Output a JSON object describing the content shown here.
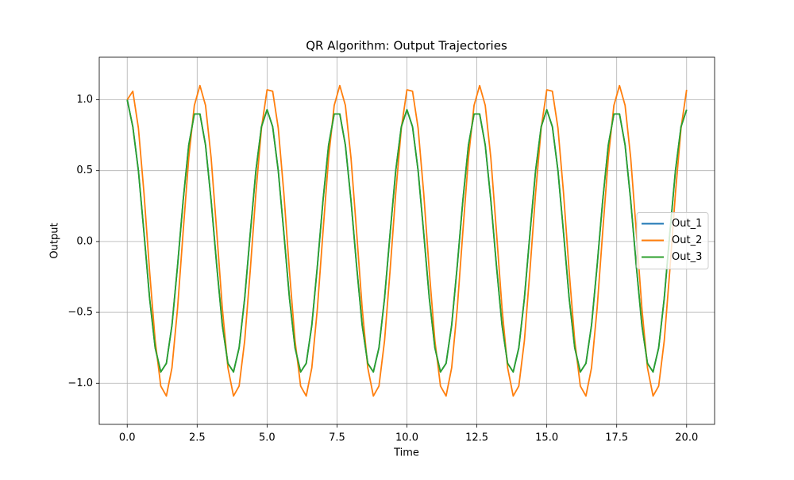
{
  "chart_data": {
    "type": "line",
    "title": "QR Algorithm: Output Trajectories",
    "xlabel": "Time",
    "ylabel": "Output",
    "x": [
      0,
      0.2,
      0.4,
      0.6,
      0.8,
      1,
      1.2,
      1.4,
      1.6,
      1.8,
      2,
      2.2,
      2.4,
      2.6,
      2.8,
      3,
      3.2,
      3.4,
      3.6,
      3.8,
      4,
      4.2,
      4.4,
      4.6,
      4.8,
      5,
      5.2,
      5.4,
      5.6,
      5.8,
      6,
      6.2,
      6.4,
      6.6,
      6.8,
      7,
      7.2,
      7.4,
      7.6,
      7.8,
      8,
      8.2,
      8.4,
      8.6,
      8.8,
      9,
      9.2,
      9.4,
      9.6,
      9.8,
      10,
      10.2,
      10.4,
      10.6,
      10.8,
      11,
      11.2,
      11.4,
      11.6,
      11.8,
      12,
      12.2,
      12.4,
      12.6,
      12.8,
      13,
      13.2,
      13.4,
      13.6,
      13.8,
      14,
      14.2,
      14.4,
      14.6,
      14.8,
      15,
      15.2,
      15.4,
      15.6,
      15.8,
      16,
      16.2,
      16.4,
      16.6,
      16.8,
      17,
      17.2,
      17.4,
      17.6,
      17.8,
      18,
      18.2,
      18.4,
      18.6,
      18.8,
      19,
      19.2,
      19.4,
      19.6,
      19.8,
      20
    ],
    "series": [
      {
        "name": "Out_1",
        "color": "#1f77b4",
        "values": [
          1.0,
          0.81,
          0.5,
          0.06,
          -0.4,
          -0.75,
          -0.92,
          -0.86,
          -0.59,
          -0.17,
          0.29,
          0.68,
          0.9,
          0.9,
          0.68,
          0.29,
          -0.17,
          -0.59,
          -0.86,
          -0.92,
          -0.75,
          -0.4,
          0.06,
          0.5,
          0.81,
          0.93,
          0.81,
          0.5,
          0.06,
          -0.4,
          -0.75,
          -0.92,
          -0.86,
          -0.59,
          -0.17,
          0.29,
          0.68,
          0.9,
          0.9,
          0.68,
          0.29,
          -0.17,
          -0.59,
          -0.86,
          -0.92,
          -0.75,
          -0.4,
          0.06,
          0.5,
          0.81,
          0.93,
          0.81,
          0.5,
          0.06,
          -0.4,
          -0.75,
          -0.92,
          -0.86,
          -0.59,
          -0.17,
          0.29,
          0.68,
          0.9,
          0.9,
          0.68,
          0.29,
          -0.17,
          -0.59,
          -0.86,
          -0.92,
          -0.75,
          -0.4,
          0.06,
          0.5,
          0.81,
          0.93,
          0.81,
          0.5,
          0.06,
          -0.4,
          -0.75,
          -0.92,
          -0.86,
          -0.59,
          -0.17,
          0.29,
          0.68,
          0.9,
          0.9,
          0.68,
          0.29,
          -0.17,
          -0.59,
          -0.86,
          -0.92,
          -0.75,
          -0.4,
          0.06,
          0.5,
          0.81,
          0.93
        ]
      },
      {
        "name": "Out_2",
        "color": "#ff7f0e",
        "values": [
          1.0,
          1.06,
          0.8,
          0.34,
          -0.21,
          -0.7,
          -1.02,
          -1.09,
          -0.89,
          -0.47,
          0.07,
          0.59,
          0.96,
          1.1,
          0.96,
          0.59,
          0.07,
          -0.47,
          -0.89,
          -1.09,
          -1.02,
          -0.7,
          -0.2,
          0.34,
          0.8,
          1.07,
          1.06,
          0.8,
          0.34,
          -0.21,
          -0.7,
          -1.02,
          -1.09,
          -0.89,
          -0.47,
          0.07,
          0.59,
          0.96,
          1.1,
          0.96,
          0.59,
          0.07,
          -0.47,
          -0.89,
          -1.09,
          -1.02,
          -0.7,
          -0.2,
          0.34,
          0.8,
          1.07,
          1.06,
          0.8,
          0.34,
          -0.21,
          -0.7,
          -1.02,
          -1.09,
          -0.89,
          -0.47,
          0.07,
          0.59,
          0.96,
          1.1,
          0.96,
          0.59,
          0.07,
          -0.47,
          -0.89,
          -1.09,
          -1.02,
          -0.7,
          -0.2,
          0.34,
          0.8,
          1.07,
          1.06,
          0.8,
          0.34,
          -0.21,
          -0.7,
          -1.02,
          -1.09,
          -0.89,
          -0.47,
          0.07,
          0.59,
          0.96,
          1.1,
          0.96,
          0.59,
          0.07,
          -0.47,
          -0.89,
          -1.09,
          -1.02,
          -0.7,
          -0.2,
          0.34,
          0.8,
          1.07
        ]
      },
      {
        "name": "Out_3",
        "color": "#2ca02c",
        "values": [
          1.0,
          0.81,
          0.5,
          0.06,
          -0.4,
          -0.75,
          -0.92,
          -0.86,
          -0.59,
          -0.17,
          0.29,
          0.68,
          0.9,
          0.9,
          0.68,
          0.29,
          -0.17,
          -0.59,
          -0.86,
          -0.92,
          -0.75,
          -0.4,
          0.06,
          0.5,
          0.81,
          0.93,
          0.81,
          0.5,
          0.06,
          -0.4,
          -0.75,
          -0.92,
          -0.86,
          -0.59,
          -0.17,
          0.29,
          0.68,
          0.9,
          0.9,
          0.68,
          0.29,
          -0.17,
          -0.59,
          -0.86,
          -0.92,
          -0.75,
          -0.4,
          0.06,
          0.5,
          0.81,
          0.93,
          0.81,
          0.5,
          0.06,
          -0.4,
          -0.75,
          -0.92,
          -0.86,
          -0.59,
          -0.17,
          0.29,
          0.68,
          0.9,
          0.9,
          0.68,
          0.29,
          -0.17,
          -0.59,
          -0.86,
          -0.92,
          -0.75,
          -0.4,
          0.06,
          0.5,
          0.81,
          0.93,
          0.81,
          0.5,
          0.06,
          -0.4,
          -0.75,
          -0.92,
          -0.86,
          -0.59,
          -0.17,
          0.29,
          0.68,
          0.9,
          0.9,
          0.68,
          0.29,
          -0.17,
          -0.59,
          -0.86,
          -0.92,
          -0.75,
          -0.4,
          0.06,
          0.5,
          0.81,
          0.93
        ]
      }
    ],
    "xlim": [
      -1.0,
      21.0
    ],
    "ylim": [
      -1.29,
      1.3
    ],
    "xticks": [
      {
        "value": 0,
        "label": "0.0"
      },
      {
        "value": 2.5,
        "label": "2.5"
      },
      {
        "value": 5,
        "label": "5.0"
      },
      {
        "value": 7.5,
        "label": "7.5"
      },
      {
        "value": 10,
        "label": "10.0"
      },
      {
        "value": 12.5,
        "label": "12.5"
      },
      {
        "value": 15,
        "label": "15.0"
      },
      {
        "value": 17.5,
        "label": "17.5"
      },
      {
        "value": 20,
        "label": "20.0"
      }
    ],
    "yticks": [
      {
        "value": -1,
        "label": "−1.0"
      },
      {
        "value": -0.5,
        "label": "−0.5"
      },
      {
        "value": 0,
        "label": "0.0"
      },
      {
        "value": 0.5,
        "label": "0.5"
      },
      {
        "value": 1,
        "label": "1.0"
      }
    ],
    "grid": true,
    "legend": "center right"
  }
}
